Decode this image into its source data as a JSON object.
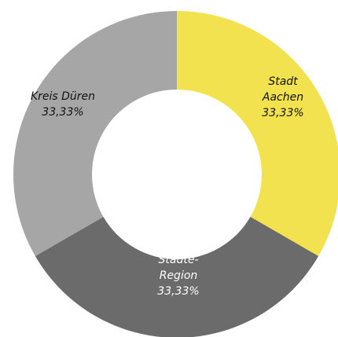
{
  "chart_data": {
    "type": "pie",
    "donut": true,
    "slices": [
      {
        "label_lines": [
          "Stadt",
          "Aachen"
        ],
        "value_text": "33,33%",
        "value": 33.33,
        "color": "#f2e24f",
        "text_color": "#111111"
      },
      {
        "label_lines": [
          "Städte-",
          "Region"
        ],
        "value_text": "33,33%",
        "value": 33.33,
        "color": "#6b6b6b",
        "text_color": "#ffffff"
      },
      {
        "label_lines": [
          "Kreis Düren"
        ],
        "value_text": "33,33%",
        "value": 33.33,
        "color": "#a6a6a6",
        "text_color": "#111111"
      }
    ],
    "start_angle_deg": 0,
    "direction": "clockwise",
    "legend": "none"
  }
}
